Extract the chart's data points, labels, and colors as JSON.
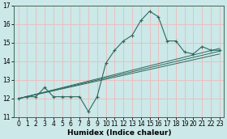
{
  "xlabel": "Humidex (Indice chaleur)",
  "ylabel": "",
  "bg_color": "#cce8e8",
  "grid_color": "#e8c0c0",
  "line_color": "#2a6a60",
  "xlim": [
    -0.5,
    23.5
  ],
  "ylim": [
    11,
    17
  ],
  "xticks": [
    0,
    1,
    2,
    3,
    4,
    5,
    6,
    7,
    8,
    9,
    10,
    11,
    12,
    13,
    14,
    15,
    16,
    17,
    18,
    19,
    20,
    21,
    22,
    23
  ],
  "yticks": [
    11,
    12,
    13,
    14,
    15,
    16,
    17
  ],
  "series": {
    "line1": {
      "x": [
        0,
        1,
        2,
        3,
        4,
        5,
        6,
        7,
        8,
        9,
        10,
        11,
        12,
        13,
        14,
        15,
        16,
        17,
        18,
        19,
        20,
        21,
        22,
        23
      ],
      "y": [
        12.0,
        12.1,
        12.1,
        12.6,
        12.1,
        12.1,
        12.1,
        12.1,
        11.3,
        12.1,
        13.9,
        14.6,
        15.1,
        15.4,
        16.2,
        16.7,
        16.4,
        15.1,
        15.1,
        14.5,
        14.4,
        14.8,
        14.6,
        14.6
      ]
    },
    "line2": {
      "x": [
        0,
        23
      ],
      "y": [
        12.0,
        14.4
      ]
    },
    "line3": {
      "x": [
        0,
        23
      ],
      "y": [
        12.0,
        14.55
      ]
    },
    "line4": {
      "x": [
        0,
        23
      ],
      "y": [
        12.0,
        14.7
      ]
    }
  },
  "tick_fontsize": 5.5,
  "xlabel_fontsize": 6.5
}
